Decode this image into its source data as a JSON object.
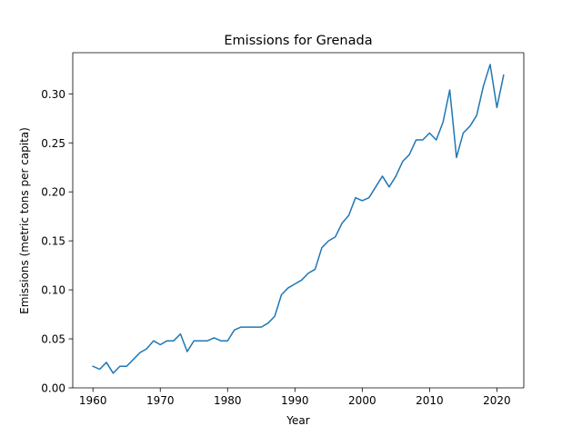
{
  "chart_data": {
    "type": "line",
    "title": "Emissions for Grenada",
    "xlabel": "Year",
    "ylabel": "Emissions (metric tons per capita)",
    "xlim": [
      1957,
      2024
    ],
    "ylim": [
      0.0,
      0.342
    ],
    "xticks": [
      1960,
      1970,
      1980,
      1990,
      2000,
      2010,
      2020
    ],
    "yticks": [
      0.0,
      0.05,
      0.1,
      0.15,
      0.2,
      0.25,
      0.3
    ],
    "ytick_labels": [
      "0.00",
      "0.05",
      "0.10",
      "0.15",
      "0.20",
      "0.25",
      "0.30"
    ],
    "grid": false,
    "series": [
      {
        "color": "#1f77b4",
        "x": [
          1960,
          1961,
          1962,
          1963,
          1964,
          1965,
          1966,
          1967,
          1968,
          1969,
          1970,
          1971,
          1972,
          1973,
          1974,
          1975,
          1976,
          1977,
          1978,
          1979,
          1980,
          1981,
          1982,
          1983,
          1984,
          1985,
          1986,
          1987,
          1988,
          1989,
          1990,
          1991,
          1992,
          1993,
          1994,
          1995,
          1996,
          1997,
          1998,
          1999,
          2000,
          2001,
          2002,
          2003,
          2004,
          2005,
          2006,
          2007,
          2008,
          2009,
          2010,
          2011,
          2012,
          2013,
          2014,
          2015,
          2016,
          2017,
          2018,
          2019,
          2020,
          2021
        ],
        "y": [
          0.022,
          0.019,
          0.026,
          0.015,
          0.022,
          0.022,
          0.029,
          0.036,
          0.04,
          0.048,
          0.044,
          0.048,
          0.048,
          0.055,
          0.037,
          0.048,
          0.048,
          0.048,
          0.051,
          0.048,
          0.048,
          0.059,
          0.062,
          0.062,
          0.062,
          0.062,
          0.066,
          0.073,
          0.095,
          0.102,
          0.106,
          0.11,
          0.117,
          0.121,
          0.143,
          0.15,
          0.154,
          0.168,
          0.176,
          0.194,
          0.191,
          0.194,
          0.205,
          0.216,
          0.205,
          0.216,
          0.231,
          0.238,
          0.253,
          0.253,
          0.26,
          0.253,
          0.271,
          0.304,
          0.235,
          0.26,
          0.267,
          0.278,
          0.308,
          0.33,
          0.286,
          0.319
        ]
      }
    ]
  }
}
